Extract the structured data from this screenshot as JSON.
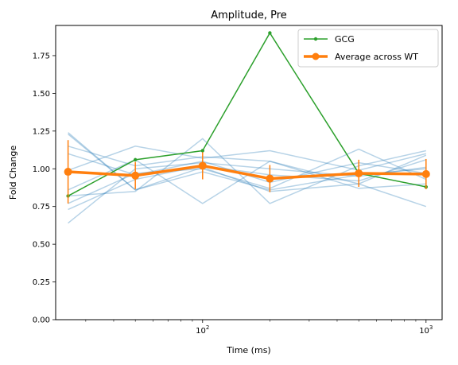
{
  "chart_data": {
    "type": "line",
    "title": "Amplitude, Pre",
    "xlabel": "Time (ms)",
    "ylabel": "Fold Change",
    "xscale": "log",
    "xlim": [
      22,
      1180
    ],
    "ylim": [
      0,
      1.95
    ],
    "x": [
      25,
      50,
      100,
      200,
      500,
      1000
    ],
    "y_ticks": [
      "0.00",
      "0.25",
      "0.50",
      "0.75",
      "1.00",
      "1.25",
      "1.50",
      "1.75"
    ],
    "x_ticks": [
      {
        "base": "10",
        "exp": "2"
      },
      {
        "base": "10",
        "exp": "3"
      }
    ],
    "legend_position": "top-right",
    "background_traces": [
      [
        1.24,
        0.86,
        1.01,
        0.85,
        0.9,
        1.09
      ],
      [
        1.15,
        1.02,
        1.08,
        1.05,
        0.87,
        0.9
      ],
      [
        0.99,
        1.15,
        1.07,
        1.12,
        0.99,
        1.1
      ],
      [
        0.86,
        1.06,
        0.77,
        1.05,
        0.9,
        0.75
      ],
      [
        0.82,
        0.85,
        1.2,
        0.77,
        1.02,
        1.12
      ],
      [
        0.77,
        0.97,
        1.0,
        0.87,
        1.13,
        0.93
      ],
      [
        0.73,
        0.93,
        1.02,
        0.96,
        0.92,
        1.06
      ],
      [
        0.64,
        1.0,
        1.04,
        1.0,
        0.95,
        1.01
      ],
      [
        1.23,
        0.86,
        0.98,
        0.86,
        0.96,
        1.0
      ],
      [
        1.1,
        0.96,
        1.05,
        0.91,
        1.04,
        0.97
      ]
    ],
    "series": [
      {
        "name": "GCG",
        "values": [
          0.82,
          1.06,
          1.12,
          1.9,
          0.97,
          0.88
        ],
        "color": "#2ca02c"
      },
      {
        "name": "Average across WT",
        "values": [
          0.98,
          0.955,
          1.02,
          0.935,
          0.97,
          0.965
        ],
        "error": [
          0.21,
          0.09,
          0.09,
          0.09,
          0.09,
          0.1
        ],
        "color": "#ff7f0e"
      }
    ],
    "trace_color": "#1f77b4"
  }
}
